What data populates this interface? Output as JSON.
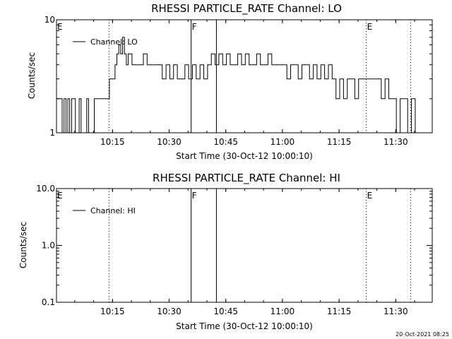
{
  "chart_data": [
    {
      "type": "line",
      "title": "RHESSI PARTICLE_RATE Channel: LO",
      "xlabel": "Start Time (30-Oct-12 10:00:10)",
      "ylabel": "Counts/sec",
      "yscale": "log",
      "ylim": [
        1,
        10
      ],
      "xlim": [
        "10:00:10",
        "11:39:40"
      ],
      "xticks": [
        "10:15",
        "10:30",
        "10:45",
        "11:00",
        "11:15",
        "11:30"
      ],
      "yticks": [
        "1",
        "10"
      ],
      "legend": {
        "position": "top-left",
        "entries": [
          "Channel: LO"
        ]
      },
      "markers": [
        {
          "label": "E",
          "time": "10:00:10",
          "style": "none"
        },
        {
          "label": "",
          "time": "10:14:04",
          "style": "dotted"
        },
        {
          "label": "F",
          "time": "10:35:49",
          "style": "solid"
        },
        {
          "label": "",
          "time": "10:42:31",
          "style": "solid"
        },
        {
          "label": "E",
          "time": "11:22:12",
          "style": "dotted"
        },
        {
          "label": "",
          "time": "11:33:57",
          "style": "dotted"
        }
      ],
      "series": [
        {
          "name": "Channel: LO",
          "x": [
            "10:00:10",
            "10:01:00",
            "10:01:40",
            "10:02:10",
            "10:02:40",
            "10:03:10",
            "10:03:40",
            "10:04:10",
            "10:04:40",
            "10:05:10",
            "10:05:40",
            "10:06:10",
            "10:06:40",
            "10:07:10",
            "10:07:40",
            "10:08:10",
            "10:08:40",
            "10:09:10",
            "10:09:40",
            "10:10:10",
            "10:10:40",
            "10:11:10",
            "10:12:10",
            "10:13:10",
            "10:14:10",
            "10:14:40",
            "10:15:10",
            "10:15:40",
            "10:16:10",
            "10:16:40",
            "10:17:10",
            "10:17:40",
            "10:18:10",
            "10:18:40",
            "10:19:10",
            "10:20:10",
            "10:21:10",
            "10:22:10",
            "10:23:10",
            "10:24:10",
            "10:25:10",
            "10:26:10",
            "10:27:10",
            "10:28:10",
            "10:29:10",
            "10:30:10",
            "10:31:10",
            "10:32:10",
            "10:33:10",
            "10:34:10",
            "10:35:10",
            "10:36:10",
            "10:37:10",
            "10:38:10",
            "10:39:10",
            "10:40:10",
            "10:41:10",
            "10:42:10",
            "10:43:10",
            "10:44:10",
            "10:45:10",
            "10:46:10",
            "10:47:10",
            "10:48:10",
            "10:49:10",
            "10:50:10",
            "10:51:10",
            "10:52:10",
            "10:53:10",
            "10:54:10",
            "10:55:10",
            "10:56:10",
            "10:57:10",
            "10:58:10",
            "10:59:10",
            "11:00:10",
            "11:01:10",
            "11:02:10",
            "11:03:10",
            "11:04:10",
            "11:05:10",
            "11:06:10",
            "11:07:10",
            "11:08:10",
            "11:09:10",
            "11:10:10",
            "11:11:10",
            "11:12:10",
            "11:13:10",
            "11:14:10",
            "11:15:10",
            "11:16:10",
            "11:17:10",
            "11:18:10",
            "11:19:10",
            "11:20:10",
            "11:21:10",
            "11:22:10",
            "11:23:10",
            "11:24:10",
            "11:25:10",
            "11:26:10",
            "11:27:10",
            "11:28:10",
            "11:29:10",
            "11:30:10",
            "11:31:10",
            "11:32:10",
            "11:33:10",
            "11:34:10",
            "11:35:10"
          ],
          "values": [
            2,
            2,
            1,
            2,
            1,
            2,
            1,
            2,
            2,
            1,
            1,
            2,
            1,
            1,
            1,
            2,
            1,
            1,
            1,
            2,
            2,
            2,
            2,
            2,
            3,
            3,
            3,
            4,
            5,
            6,
            5,
            7,
            5,
            4,
            5,
            4,
            4,
            4,
            5,
            4,
            4,
            4,
            4,
            3,
            4,
            3,
            4,
            3,
            3,
            4,
            3,
            4,
            3,
            4,
            3,
            4,
            5,
            4,
            5,
            4,
            5,
            4,
            4,
            5,
            4,
            5,
            4,
            4,
            5,
            4,
            4,
            5,
            4,
            4,
            4,
            4,
            3,
            4,
            4,
            3,
            4,
            4,
            3,
            4,
            3,
            4,
            3,
            4,
            3,
            2,
            3,
            2,
            3,
            3,
            2,
            3,
            3,
            3,
            3,
            3,
            3,
            2,
            3,
            2,
            2,
            1,
            2,
            2,
            1,
            2,
            1
          ]
        }
      ]
    },
    {
      "type": "line",
      "title": "RHESSI PARTICLE_RATE Channel: HI",
      "xlabel": "Start Time (30-Oct-12 10:00:10)",
      "ylabel": "Counts/sec",
      "yscale": "log",
      "ylim": [
        0.1,
        10
      ],
      "xlim": [
        "10:00:10",
        "11:39:40"
      ],
      "xticks": [
        "10:15",
        "10:30",
        "10:45",
        "11:00",
        "11:15",
        "11:30"
      ],
      "yticks": [
        "0.1",
        "1.0",
        "10.0"
      ],
      "legend": {
        "position": "top-left",
        "entries": [
          "Channel: HI"
        ]
      },
      "markers": [
        {
          "label": "E",
          "time": "10:00:10",
          "style": "none"
        },
        {
          "label": "",
          "time": "10:14:04",
          "style": "dotted"
        },
        {
          "label": "F",
          "time": "10:35:49",
          "style": "solid"
        },
        {
          "label": "",
          "time": "10:42:31",
          "style": "solid"
        },
        {
          "label": "E",
          "time": "11:22:12",
          "style": "dotted"
        },
        {
          "label": "",
          "time": "11:33:57",
          "style": "dotted"
        }
      ],
      "series": [
        {
          "name": "Channel: HI",
          "x": [],
          "values": []
        }
      ]
    }
  ],
  "footer": {
    "timestamp": "20-Oct-2021 08:25"
  }
}
